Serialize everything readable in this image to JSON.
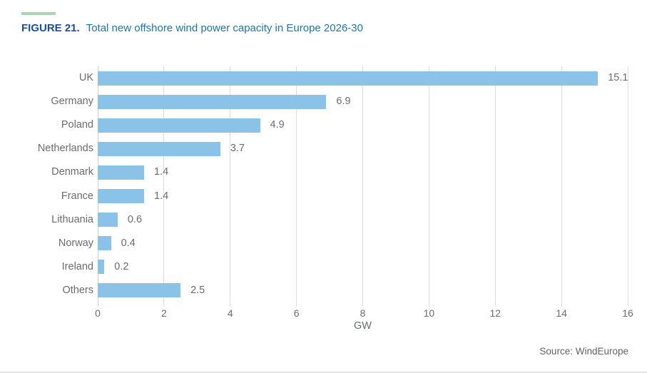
{
  "figure": {
    "label": "FIGURE 21.",
    "title": "Total new offshore wind power capacity in Europe 2026-30"
  },
  "chart_data": {
    "type": "bar",
    "orientation": "horizontal",
    "title": "Total new offshore wind power capacity in Europe 2026-30",
    "categories": [
      "UK",
      "Germany",
      "Poland",
      "Netherlands",
      "Denmark",
      "France",
      "Lithuania",
      "Norway",
      "Ireland",
      "Others"
    ],
    "values": [
      15.1,
      6.9,
      4.9,
      3.7,
      1.4,
      1.4,
      0.6,
      0.4,
      0.2,
      2.5
    ],
    "value_labels": [
      "15.1",
      "6.9",
      "4.9",
      "3.7",
      "1.4",
      "1.4",
      "0.6",
      "0.4",
      "0.2",
      "2.5"
    ],
    "xlabel": "GW",
    "ylabel": "",
    "xlim": [
      0,
      16
    ],
    "xticks": [
      0,
      2,
      4,
      6,
      8,
      10,
      12,
      14,
      16
    ],
    "grid": "vertical",
    "legend": "none"
  },
  "source": "Source: WindEurope",
  "colors": {
    "figure_label": "#174F9B",
    "figure_text": "#1C76A8",
    "accent_dash": "#A9D4B0",
    "bar": "#8AC2E8",
    "grid": "#DCDCDC",
    "axis_line": "#C9CED3",
    "text_gray": "#696C6F",
    "source_text": "#606366",
    "bottom_rule": "#E3E3E3"
  }
}
